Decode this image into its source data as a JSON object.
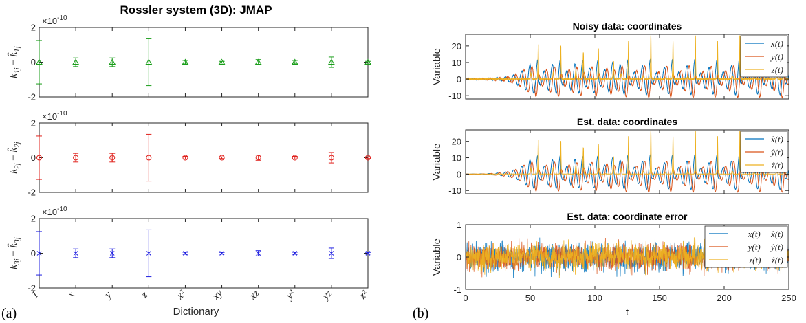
{
  "panel_labels": [
    "(a)",
    "(b)"
  ],
  "chart_data": [
    {
      "type": "scatter",
      "title": "Rossler system (3D): JMAP",
      "xlabel": "Dictionary",
      "categories": [
        "1",
        "x",
        "y",
        "z",
        "x²",
        "xy",
        "xz",
        "y²",
        "yz",
        "z²"
      ],
      "ylim": [
        -2,
        2
      ],
      "yticks": [
        "-2",
        "0",
        "2"
      ],
      "scale_exponent": "×10",
      "scale_power": "-10",
      "grid": false,
      "series": [
        {
          "name": "k₁ⱼ − k̂₁ⱼ",
          "color": "#1a9e1a",
          "marker": "triangle",
          "values": [
            0,
            0,
            0,
            0,
            0,
            0,
            0,
            0,
            0,
            0
          ],
          "errors": [
            1.25,
            0.25,
            0.25,
            1.35,
            0.1,
            0.05,
            0.15,
            0.1,
            0.3,
            0.05
          ]
        },
        {
          "name": "k₂ⱼ − k̂₂ⱼ",
          "color": "#e0201b",
          "marker": "circle",
          "values": [
            0,
            0,
            0,
            0,
            0,
            0,
            0,
            0,
            0,
            0
          ],
          "errors": [
            1.25,
            0.25,
            0.25,
            1.35,
            0.08,
            0.05,
            0.15,
            0.08,
            0.3,
            0.05
          ]
        },
        {
          "name": "k₃ⱼ − k̂₃ⱼ",
          "color": "#1f1fe0",
          "marker": "x",
          "values": [
            0,
            0,
            0,
            0,
            0,
            0,
            0,
            0,
            0,
            0
          ],
          "errors": [
            1.25,
            0.25,
            0.25,
            1.35,
            0.06,
            0.05,
            0.15,
            0.06,
            0.3,
            0.05
          ]
        }
      ]
    },
    {
      "type": "line",
      "title": "Noisy data: coordinates",
      "ylabel": "Variable",
      "xlim": [
        0,
        250
      ],
      "ylim": [
        -12,
        27
      ],
      "yticks": [
        -10,
        0,
        10,
        20
      ],
      "legend": "top-right",
      "series": [
        {
          "name": "x(t)",
          "color": "#0072BD"
        },
        {
          "name": "y(t)",
          "color": "#D95319"
        },
        {
          "name": "z(t)",
          "color": "#EDB120"
        }
      ]
    },
    {
      "type": "line",
      "title": "Est. data: coordinates",
      "ylabel": "Variable",
      "xlim": [
        0,
        250
      ],
      "ylim": [
        -12,
        27
      ],
      "yticks": [
        -10,
        0,
        10,
        20
      ],
      "legend": "top-right",
      "series": [
        {
          "name": "x̂(t)",
          "color": "#0072BD"
        },
        {
          "name": "ŷ(t)",
          "color": "#D95319"
        },
        {
          "name": "ẑ(t)",
          "color": "#EDB120"
        }
      ]
    },
    {
      "type": "line",
      "title": "Est. data: coordinate error",
      "ylabel": "Variable",
      "xlabel": "t",
      "xlim": [
        0,
        250
      ],
      "ylim": [
        -1,
        1
      ],
      "yticks": [
        -1,
        0,
        1
      ],
      "xticks": [
        0,
        50,
        100,
        150,
        200,
        250
      ],
      "legend": "top-right",
      "series": [
        {
          "name": "x(t) − x̂(t)",
          "color": "#0072BD"
        },
        {
          "name": "y(t) − ŷ(t)",
          "color": "#D95319"
        },
        {
          "name": "z(t) − ẑ(t)",
          "color": "#EDB120"
        }
      ]
    }
  ]
}
